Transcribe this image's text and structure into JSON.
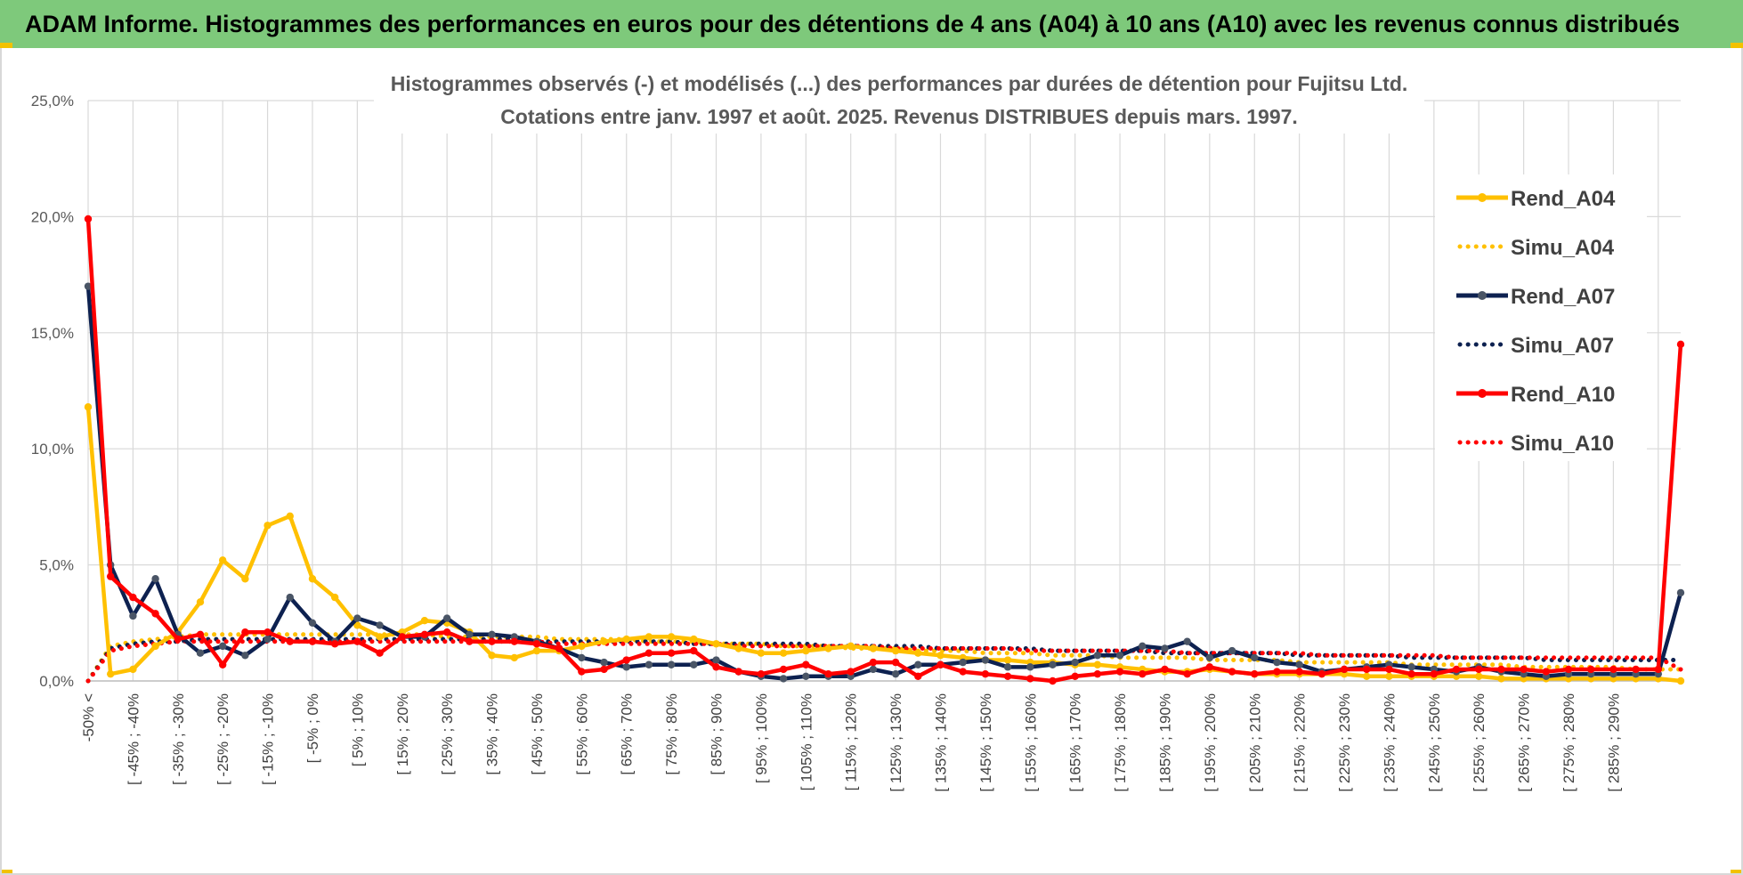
{
  "banner": {
    "title": "ADAM Informe. Histogrammes des performances en euros pour des détentions de 4 ans (A04) à 10 ans (A10) avec les revenus connus distribués"
  },
  "colors": {
    "banner_bg": "#7ec97b",
    "A04": "#ffc000",
    "A07": "#0d2150",
    "A10": "#ff0000",
    "marker_A07": "#4a5566",
    "grid": "#d9d9d9"
  },
  "chart_data": {
    "type": "line",
    "title_line1": "Histogrammes observés (-) et modélisés (...) des performances par durées de détention pour Fujitsu Ltd.",
    "title_line2": "Cotations entre janv. 1997 et août. 2025. Revenus DISTRIBUES depuis mars. 1997.",
    "xlabel": "",
    "ylabel": "",
    "ylim": [
      0,
      25
    ],
    "yticks": [
      "0,0%",
      "5,0%",
      "10,0%",
      "15,0%",
      "20,0%",
      "25,0%"
    ],
    "grid": true,
    "legend_position": "right",
    "x_labels": [
      "-50% <",
      "[ -45% ; -40%",
      "[ -35% ; -30%",
      "[ -25% ; -20%",
      "[ -15% ; -10%",
      "[ -5% ; 0%",
      "[ 5% ; 10%",
      "[ 15% ; 20%",
      "[ 25% ; 30%",
      "[ 35% ; 40%",
      "[ 45% ; 50%",
      "[ 55% ; 60%",
      "[ 65% ; 70%",
      "[ 75% ; 80%",
      "[ 85% ; 90%",
      "[ 95% ; 100%",
      "[ 105% ; 110%",
      "[ 115% ; 120%",
      "[ 125% ; 130%",
      "[ 135% ; 140%",
      "[ 145% ; 150%",
      "[ 155% ; 160%",
      "[ 165% ; 170%",
      "[ 175% ; 180%",
      "[ 185% ; 190%",
      "[ 195% ; 200%",
      "[ 205% ; 210%",
      "[ 215% ; 220%",
      "[ 225% ; 230%",
      "[ 235% ; 240%",
      "[ 245% ; 250%",
      "[ 255% ; 260%",
      "[ 265% ; 270%",
      "[ 275% ; 280%",
      "[ 285% ; 290%"
    ],
    "series": [
      {
        "name": "Rend_A04",
        "style": "solid",
        "color": "#ffc000",
        "values": [
          11.8,
          0.3,
          0.5,
          1.5,
          2.1,
          3.4,
          5.2,
          4.4,
          6.7,
          7.1,
          4.4,
          3.6,
          2.4,
          1.9,
          2.1,
          2.6,
          2.5,
          2.1,
          1.1,
          1.0,
          1.3,
          1.3,
          1.5,
          1.7,
          1.8,
          1.9,
          1.9,
          1.8,
          1.6,
          1.4,
          1.2,
          1.2,
          1.3,
          1.4,
          1.5,
          1.4,
          1.3,
          1.2,
          1.1,
          1.0,
          0.9,
          0.9,
          0.8,
          0.8,
          0.7,
          0.7,
          0.6,
          0.5,
          0.4,
          0.4,
          0.5,
          0.4,
          0.3,
          0.3,
          0.3,
          0.3,
          0.3,
          0.2,
          0.2,
          0.2,
          0.2,
          0.2,
          0.2,
          0.1,
          0.1,
          0.1,
          0.1,
          0.1,
          0.1,
          0.1,
          0.1,
          0.0
        ]
      },
      {
        "name": "Simu_A04",
        "style": "dotted",
        "color": "#ffc000",
        "values": [
          0.0,
          1.5,
          1.7,
          1.8,
          1.9,
          2.0,
          2.0,
          2.0,
          2.0,
          2.0,
          2.0,
          2.0,
          2.0,
          2.0,
          2.0,
          2.0,
          1.9,
          1.9,
          1.9,
          1.9,
          1.9,
          1.8,
          1.8,
          1.8,
          1.8,
          1.7,
          1.7,
          1.7,
          1.6,
          1.6,
          1.6,
          1.5,
          1.5,
          1.5,
          1.4,
          1.4,
          1.4,
          1.3,
          1.3,
          1.3,
          1.2,
          1.2,
          1.2,
          1.1,
          1.1,
          1.1,
          1.0,
          1.0,
          1.0,
          1.0,
          0.9,
          0.9,
          0.9,
          0.9,
          0.8,
          0.8,
          0.8,
          0.8,
          0.8,
          0.7,
          0.7,
          0.7,
          0.7,
          0.7,
          0.6,
          0.6,
          0.6,
          0.6,
          0.6,
          0.5,
          0.5,
          0.5
        ]
      },
      {
        "name": "Rend_A07",
        "style": "solid",
        "color": "#0d2150",
        "values": [
          17.0,
          5.0,
          2.8,
          4.4,
          2.0,
          1.2,
          1.5,
          1.1,
          1.8,
          3.6,
          2.5,
          1.7,
          2.7,
          2.4,
          1.9,
          1.9,
          2.7,
          2.0,
          2.0,
          1.9,
          1.7,
          1.4,
          1.0,
          0.8,
          0.6,
          0.7,
          0.7,
          0.7,
          0.9,
          0.4,
          0.2,
          0.1,
          0.2,
          0.2,
          0.2,
          0.5,
          0.3,
          0.7,
          0.7,
          0.8,
          0.9,
          0.6,
          0.6,
          0.7,
          0.8,
          1.1,
          1.1,
          1.5,
          1.4,
          1.7,
          1.0,
          1.3,
          1.0,
          0.8,
          0.7,
          0.4,
          0.5,
          0.6,
          0.7,
          0.6,
          0.5,
          0.4,
          0.6,
          0.4,
          0.3,
          0.2,
          0.3,
          0.3,
          0.3,
          0.3,
          0.3,
          3.8
        ]
      },
      {
        "name": "Simu_A07",
        "style": "dotted",
        "color": "#0d2150",
        "values": [
          0.0,
          1.4,
          1.6,
          1.7,
          1.7,
          1.8,
          1.8,
          1.8,
          1.8,
          1.8,
          1.8,
          1.8,
          1.8,
          1.8,
          1.8,
          1.8,
          1.8,
          1.8,
          1.8,
          1.8,
          1.7,
          1.7,
          1.7,
          1.7,
          1.7,
          1.7,
          1.7,
          1.6,
          1.6,
          1.6,
          1.6,
          1.6,
          1.6,
          1.5,
          1.5,
          1.5,
          1.5,
          1.5,
          1.4,
          1.4,
          1.4,
          1.4,
          1.4,
          1.3,
          1.3,
          1.3,
          1.3,
          1.3,
          1.2,
          1.2,
          1.2,
          1.2,
          1.2,
          1.2,
          1.1,
          1.1,
          1.1,
          1.1,
          1.1,
          1.0,
          1.0,
          1.0,
          1.0,
          1.0,
          1.0,
          0.9,
          0.9,
          0.9,
          0.9,
          0.9,
          0.9,
          0.9
        ]
      },
      {
        "name": "Rend_A10",
        "style": "solid",
        "color": "#ff0000",
        "values": [
          19.9,
          4.5,
          3.6,
          2.9,
          1.8,
          2.0,
          0.7,
          2.1,
          2.1,
          1.7,
          1.7,
          1.6,
          1.7,
          1.2,
          1.9,
          2.0,
          2.1,
          1.7,
          1.7,
          1.7,
          1.6,
          1.4,
          0.4,
          0.5,
          0.9,
          1.2,
          1.2,
          1.3,
          0.6,
          0.4,
          0.3,
          0.5,
          0.7,
          0.3,
          0.4,
          0.8,
          0.8,
          0.2,
          0.7,
          0.4,
          0.3,
          0.2,
          0.1,
          0.0,
          0.2,
          0.3,
          0.4,
          0.3,
          0.5,
          0.3,
          0.6,
          0.4,
          0.3,
          0.4,
          0.4,
          0.3,
          0.5,
          0.5,
          0.5,
          0.3,
          0.3,
          0.5,
          0.5,
          0.5,
          0.5,
          0.4,
          0.5,
          0.5,
          0.5,
          0.5,
          0.5,
          14.5
        ]
      },
      {
        "name": "Simu_A10",
        "style": "dotted",
        "color": "#ff0000",
        "values": [
          0.0,
          1.3,
          1.5,
          1.6,
          1.7,
          1.7,
          1.7,
          1.7,
          1.7,
          1.7,
          1.7,
          1.7,
          1.7,
          1.7,
          1.7,
          1.7,
          1.7,
          1.7,
          1.7,
          1.7,
          1.7,
          1.6,
          1.6,
          1.6,
          1.6,
          1.6,
          1.6,
          1.6,
          1.6,
          1.5,
          1.5,
          1.5,
          1.5,
          1.5,
          1.5,
          1.5,
          1.4,
          1.4,
          1.4,
          1.4,
          1.4,
          1.4,
          1.3,
          1.3,
          1.3,
          1.3,
          1.3,
          1.3,
          1.3,
          1.2,
          1.2,
          1.2,
          1.2,
          1.2,
          1.2,
          1.1,
          1.1,
          1.1,
          1.1,
          1.1,
          1.1,
          1.0,
          1.0,
          1.0,
          1.0,
          1.0,
          1.0,
          1.0,
          1.0,
          1.0,
          1.0,
          0.5
        ]
      }
    ]
  }
}
